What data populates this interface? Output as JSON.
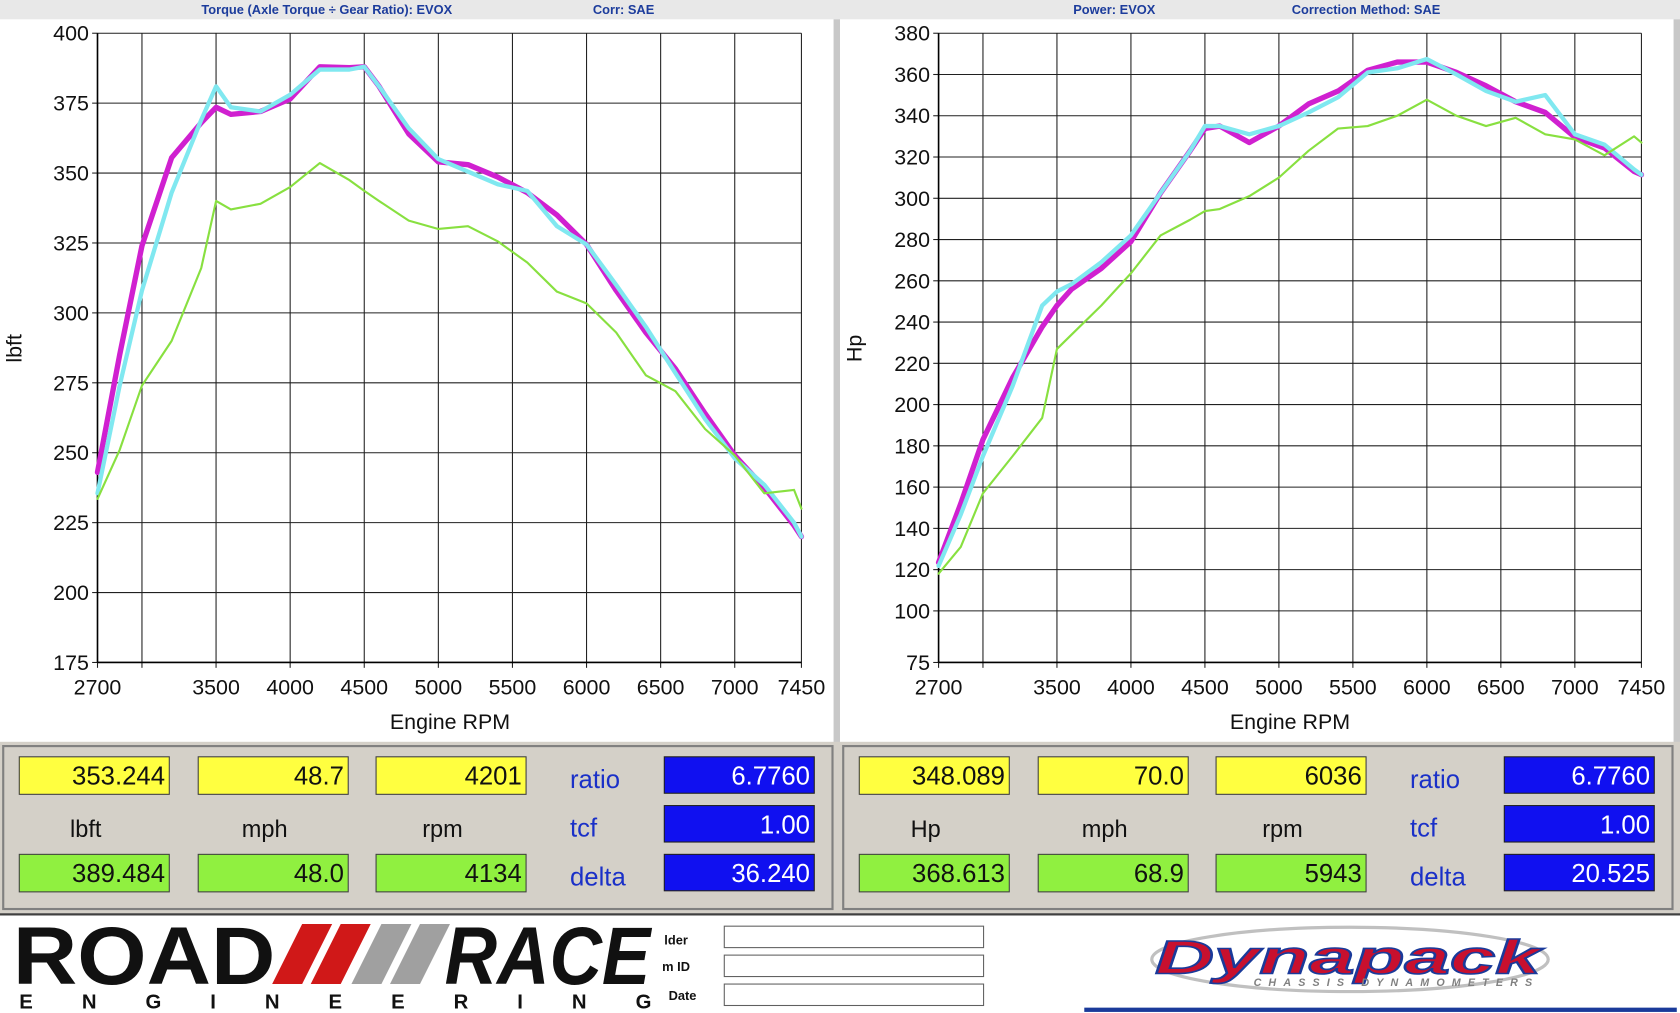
{
  "chart_data": [
    {
      "type": "line",
      "title": "Torque (Axle Torque ÷ Gear Ratio): EVOX",
      "subtitle": "Corr: SAE",
      "x_label": "Engine RPM",
      "y_label": "lbft",
      "x": [
        2700,
        2850,
        3000,
        3200,
        3400,
        3500,
        3600,
        3800,
        4000,
        4200,
        4400,
        4500,
        4600,
        4800,
        5000,
        5200,
        5400,
        5600,
        5800,
        6000,
        6200,
        6400,
        6600,
        6800,
        7000,
        7200,
        7400,
        7450
      ],
      "series": [
        {
          "color": "#d020d0",
          "values": [
            243,
            285,
            324,
            355.5,
            368,
            373.5,
            371,
            372,
            376.5,
            388,
            387.7,
            388,
            381,
            364,
            354,
            353,
            348.6,
            343,
            335,
            324.5,
            308,
            293,
            280,
            264,
            249,
            237.5,
            224,
            220
          ]
        },
        {
          "color": "#80e8f0",
          "values": [
            235.5,
            274,
            308,
            343,
            369,
            381,
            373.5,
            372,
            378,
            387,
            387,
            388,
            381,
            366,
            355,
            350.5,
            346,
            343.6,
            331,
            324.5,
            310,
            295,
            278.5,
            262,
            248,
            238.5,
            225,
            220
          ]
        },
        {
          "color": "#88e040",
          "values": [
            233.5,
            251,
            274,
            290,
            316,
            340,
            337,
            339,
            345,
            353.6,
            347.5,
            343.6,
            340,
            333,
            330,
            331,
            325.6,
            318,
            307.6,
            303.4,
            293,
            277.7,
            272,
            258.5,
            249,
            235.5,
            236.7,
            230
          ]
        }
      ],
      "xlim": [
        2700,
        7450
      ],
      "xticks": [
        2700,
        {
          "value": 3000,
          "label": null
        },
        3500,
        4000,
        4500,
        5000,
        5500,
        6000,
        6500,
        7000,
        7450
      ],
      "ylim": [
        175,
        400
      ],
      "yticks": [
        175,
        200,
        225,
        250,
        275,
        300,
        325,
        350,
        375,
        400
      ],
      "grid": true
    },
    {
      "type": "line",
      "title": "Power: EVOX",
      "subtitle": "Correction Method: SAE",
      "x_label": "Engine RPM",
      "y_label": "Hp",
      "x": [
        2700,
        2850,
        3000,
        3200,
        3400,
        3500,
        3600,
        3800,
        4000,
        4200,
        4400,
        4500,
        4600,
        4800,
        5000,
        5200,
        5400,
        5600,
        5800,
        6000,
        6200,
        6400,
        6600,
        6800,
        7000,
        7200,
        7400,
        7450
      ],
      "series": [
        {
          "color": "#d020d0",
          "values": [
            123.4,
            152,
            183,
            213,
            237.7,
            248,
            256,
            266,
            279,
            302.6,
            323,
            333.8,
            335,
            327,
            335,
            345.7,
            352,
            362,
            366,
            366,
            361,
            354.5,
            346.8,
            341.6,
            329.6,
            324.4,
            313,
            311.4
          ]
        },
        {
          "color": "#80e8f0",
          "values": [
            121.8,
            146.7,
            175,
            209,
            248,
            254.8,
            258.4,
            269,
            282,
            302.6,
            323,
            335,
            335,
            331,
            335,
            341.6,
            349,
            361,
            363,
            367.5,
            360,
            352,
            346.8,
            350,
            331,
            326,
            314,
            311.4
          ]
        },
        {
          "color": "#88e040",
          "values": [
            118,
            131,
            157,
            175,
            193.5,
            227,
            234,
            248,
            263.6,
            282,
            289.6,
            293.8,
            294.8,
            301,
            310,
            323,
            333.8,
            335,
            340,
            347.8,
            340,
            335,
            339,
            331,
            328.5,
            320.8,
            330,
            327
          ]
        }
      ],
      "xlim": [
        2700,
        7450
      ],
      "xticks": [
        2700,
        {
          "value": 3000,
          "label": null
        },
        3500,
        4000,
        4500,
        5000,
        5500,
        6000,
        6500,
        7000,
        7450
      ],
      "ylim": [
        75,
        380
      ],
      "yticks": [
        75,
        100,
        120,
        140,
        160,
        180,
        200,
        220,
        240,
        260,
        280,
        300,
        320,
        340,
        360,
        380
      ],
      "grid": true
    }
  ],
  "readouts": [
    {
      "top": [
        "353.244",
        "48.7",
        "4201"
      ],
      "units": [
        "lbft",
        "mph",
        "rpm"
      ],
      "bottom": [
        "389.484",
        "48.0",
        "4134"
      ],
      "params": [
        {
          "label": "ratio",
          "value": "6.7760"
        },
        {
          "label": "tcf",
          "value": "1.00"
        },
        {
          "label": "delta",
          "value": "36.240"
        }
      ]
    },
    {
      "top": [
        "348.089",
        "70.0",
        "6036"
      ],
      "units": [
        "Hp",
        "mph",
        "rpm"
      ],
      "bottom": [
        "368.613",
        "68.9",
        "5943"
      ],
      "params": [
        {
          "label": "ratio",
          "value": "6.7760"
        },
        {
          "label": "tcf",
          "value": "1.00"
        },
        {
          "label": "delta",
          "value": "20.525"
        }
      ]
    }
  ],
  "footer": {
    "logo_left": {
      "word1": "ROAD",
      "word2": "RACE",
      "word3": "ENGINEERING"
    },
    "fields": [
      "lder",
      "m ID",
      "Date"
    ],
    "logo_right": {
      "name": "Dynapack",
      "tagline": "CHASSIS DYNAMOMETERS"
    }
  }
}
